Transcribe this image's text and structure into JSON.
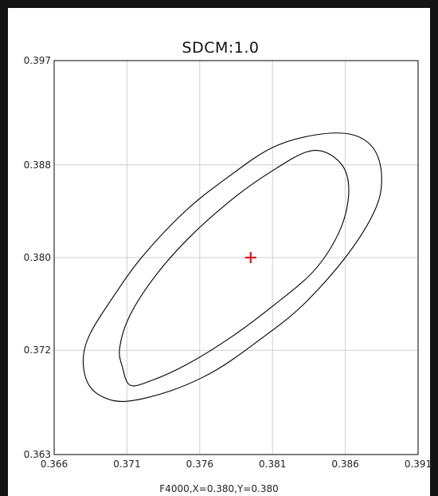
{
  "chart_data": {
    "type": "scatter",
    "title": "SDCM:1.0",
    "footer": "F4000,X=0.380,Y=0.380",
    "xlim": [
      0.366,
      0.391
    ],
    "ylim": [
      0.363,
      0.397
    ],
    "x_ticks": [
      "0.366",
      "0.371",
      "0.376",
      "0.381",
      "0.386",
      "0.391"
    ],
    "x_tick_values": [
      0.366,
      0.371,
      0.376,
      0.381,
      0.386,
      0.391
    ],
    "y_ticks": [
      "0.397",
      "0.388",
      "0.380",
      "0.372",
      "0.363"
    ],
    "y_tick_values": [
      0.397,
      0.388,
      0.38,
      0.372,
      0.363
    ],
    "grid": true,
    "marker_color": "#e0101c",
    "center_point": {
      "x": 0.3795,
      "y": 0.38
    },
    "series": [
      {
        "kind": "outer-ellipse",
        "points": [
          [
            0.368,
            0.3713
          ],
          [
            0.3685,
            0.3735
          ],
          [
            0.37,
            0.3765
          ],
          [
            0.372,
            0.38
          ],
          [
            0.375,
            0.384
          ],
          [
            0.378,
            0.387
          ],
          [
            0.381,
            0.3895
          ],
          [
            0.384,
            0.3906
          ],
          [
            0.3865,
            0.3906
          ],
          [
            0.388,
            0.3893
          ],
          [
            0.3885,
            0.3868
          ],
          [
            0.388,
            0.384
          ],
          [
            0.386,
            0.38
          ],
          [
            0.383,
            0.3758
          ],
          [
            0.38,
            0.3728
          ],
          [
            0.377,
            0.3702
          ],
          [
            0.374,
            0.3685
          ],
          [
            0.371,
            0.3676
          ],
          [
            0.3693,
            0.368
          ],
          [
            0.3683,
            0.3692
          ]
        ]
      },
      {
        "kind": "inner-ellipse",
        "points": [
          [
            0.3705,
            0.3722
          ],
          [
            0.3712,
            0.375
          ],
          [
            0.373,
            0.3785
          ],
          [
            0.3755,
            0.382
          ],
          [
            0.3785,
            0.3853
          ],
          [
            0.381,
            0.3875
          ],
          [
            0.3833,
            0.3891
          ],
          [
            0.3848,
            0.389
          ],
          [
            0.386,
            0.3875
          ],
          [
            0.3862,
            0.385
          ],
          [
            0.3855,
            0.382
          ],
          [
            0.3838,
            0.3788
          ],
          [
            0.381,
            0.3758
          ],
          [
            0.378,
            0.373
          ],
          [
            0.375,
            0.3707
          ],
          [
            0.3725,
            0.3693
          ],
          [
            0.3712,
            0.369
          ],
          [
            0.3707,
            0.3705
          ]
        ]
      }
    ]
  }
}
